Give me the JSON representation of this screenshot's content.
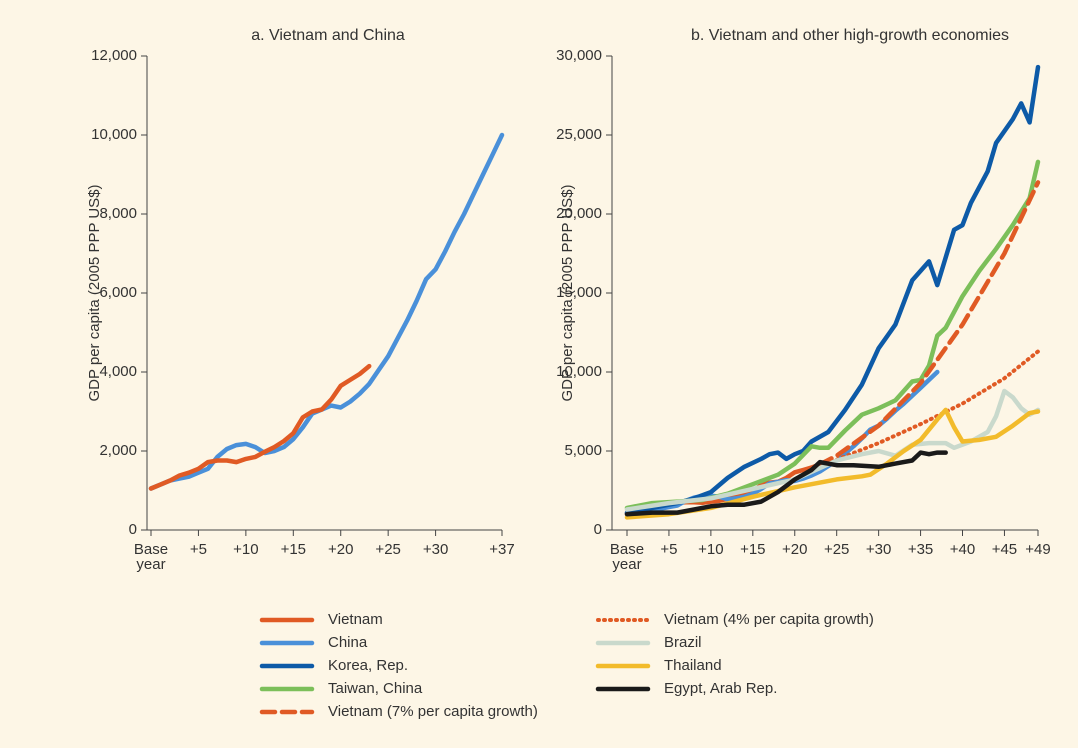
{
  "chart_data": [
    {
      "type": "line",
      "title": "a. Vietnam and China",
      "y_label": "GDP per capita (2005 PPP US$)",
      "xlim": [
        0,
        37
      ],
      "ylim": [
        0,
        12000
      ],
      "xticks": [
        {
          "value": 0,
          "label": "Base year"
        },
        5,
        10,
        15,
        20,
        25,
        30,
        37
      ],
      "yticks": [
        0,
        {
          "value": 2000,
          "label": "2,000"
        },
        {
          "value": 4000,
          "label": "4,000"
        },
        {
          "value": 6000,
          "label": "6,000"
        },
        {
          "value": 8000,
          "label": "8,000"
        },
        {
          "value": 10000,
          "label": "10,000"
        },
        {
          "value": 12000,
          "label": "12,000"
        }
      ],
      "xtick_prefix": "+",
      "series": [
        {
          "name": "China",
          "color": "#4a90d9",
          "style": "solid",
          "x": [
            0,
            1,
            2,
            3,
            4,
            5,
            6,
            7,
            8,
            9,
            10,
            11,
            12,
            13,
            14,
            15,
            16,
            17,
            18,
            19,
            20,
            21,
            22,
            23,
            24,
            25,
            26,
            27,
            28,
            29,
            30,
            31,
            32,
            33,
            34,
            35,
            36,
            37
          ],
          "values": [
            1050,
            1150,
            1250,
            1300,
            1350,
            1450,
            1550,
            1850,
            2050,
            2150,
            2180,
            2100,
            1950,
            2000,
            2100,
            2300,
            2600,
            2950,
            3050,
            3150,
            3100,
            3250,
            3450,
            3700,
            4050,
            4400,
            4850,
            5300,
            5800,
            6350,
            6600,
            7050,
            7550,
            8000,
            8500,
            9000,
            9500,
            10000
          ]
        },
        {
          "name": "Vietnam",
          "color": "#e05a24",
          "style": "solid",
          "x": [
            0,
            1,
            2,
            3,
            4,
            5,
            6,
            7,
            8,
            9,
            10,
            11,
            12,
            13,
            14,
            15,
            16,
            17,
            18,
            19,
            20,
            21,
            22,
            23
          ],
          "values": [
            1050,
            1150,
            1250,
            1380,
            1450,
            1550,
            1720,
            1760,
            1760,
            1720,
            1800,
            1850,
            1980,
            2100,
            2250,
            2450,
            2850,
            3000,
            3050,
            3300,
            3650,
            3800,
            3950,
            4150
          ]
        }
      ]
    },
    {
      "type": "line",
      "title": "b. Vietnam and other high-growth economies",
      "y_label": "GDP per capita (2005 PPP US$)",
      "xlim": [
        0,
        49
      ],
      "ylim": [
        0,
        30000
      ],
      "xticks": [
        {
          "value": 0,
          "label": "Base year"
        },
        5,
        10,
        15,
        20,
        25,
        30,
        35,
        40,
        45,
        49
      ],
      "yticks": [
        0,
        {
          "value": 5000,
          "label": "5,000"
        },
        {
          "value": 10000,
          "label": "10,000"
        },
        {
          "value": 15000,
          "label": "15,000"
        },
        {
          "value": 20000,
          "label": "20,000"
        },
        {
          "value": 25000,
          "label": "25,000"
        },
        {
          "value": 30000,
          "label": "30,000"
        }
      ],
      "xtick_prefix": "+",
      "series": [
        {
          "name": "Vietnam",
          "color": "#e05a24",
          "style": "solid",
          "x": [
            0,
            1,
            2,
            3,
            4,
            5,
            6,
            7,
            8,
            9,
            10,
            11,
            12,
            13,
            14,
            15,
            16,
            17,
            18,
            19,
            20,
            21,
            22,
            23
          ],
          "values": [
            1050,
            1150,
            1250,
            1380,
            1450,
            1550,
            1720,
            1760,
            1760,
            1720,
            1800,
            1850,
            1980,
            2100,
            2250,
            2450,
            2850,
            3000,
            3050,
            3300,
            3650,
            3800,
            3950,
            4150
          ]
        },
        {
          "name": "China",
          "color": "#4a90d9",
          "style": "solid",
          "x": [
            0,
            1,
            2,
            3,
            4,
            5,
            6,
            7,
            8,
            9,
            10,
            11,
            12,
            13,
            14,
            15,
            16,
            17,
            18,
            19,
            20,
            21,
            22,
            23,
            24,
            25,
            26,
            27,
            28,
            29,
            30,
            31,
            32,
            33,
            34,
            35,
            36,
            37
          ],
          "values": [
            1050,
            1150,
            1250,
            1300,
            1350,
            1450,
            1550,
            1850,
            2050,
            2150,
            2180,
            2100,
            1950,
            2000,
            2100,
            2300,
            2600,
            2950,
            3050,
            3150,
            3100,
            3250,
            3450,
            3700,
            4050,
            4400,
            4850,
            5300,
            5800,
            6350,
            6600,
            7050,
            7550,
            8000,
            8500,
            9000,
            9500,
            10000
          ]
        },
        {
          "name": "Korea, Rep.",
          "color": "#0d5aa7",
          "style": "solid",
          "x": [
            0,
            2,
            4,
            6,
            8,
            10,
            12,
            14,
            16,
            17,
            18,
            19,
            20,
            21,
            22,
            24,
            26,
            28,
            30,
            32,
            34,
            36,
            37,
            39,
            40,
            41,
            43,
            44,
            46,
            47,
            48,
            49
          ],
          "values": [
            1100,
            1300,
            1500,
            1700,
            2000,
            2400,
            3300,
            4000,
            4500,
            4800,
            4900,
            4500,
            4800,
            5000,
            5600,
            6200,
            7600,
            9200,
            11500,
            13000,
            15800,
            17000,
            15500,
            19000,
            19300,
            20700,
            22700,
            24500,
            26000,
            27000,
            25800,
            29300
          ]
        },
        {
          "name": "Taiwan, China",
          "color": "#7cbf5a",
          "style": "solid",
          "x": [
            0,
            3,
            6,
            9,
            12,
            15,
            18,
            20,
            22,
            23,
            24,
            26,
            28,
            30,
            32,
            34,
            35,
            36,
            37,
            38,
            40,
            42,
            44,
            46,
            48,
            49
          ],
          "values": [
            1400,
            1700,
            1800,
            1900,
            2300,
            2900,
            3500,
            4200,
            5300,
            5200,
            5200,
            6300,
            7300,
            7700,
            8200,
            9400,
            9500,
            10400,
            12300,
            12800,
            14800,
            16400,
            17800,
            19300,
            21000,
            23300
          ]
        },
        {
          "name": "Vietnam (7% per capita growth)",
          "color": "#e05a24",
          "style": "dashed",
          "x": [
            23,
            25,
            30,
            35,
            40,
            45,
            49
          ],
          "values": [
            4150,
            4700,
            6600,
            9300,
            13000,
            17500,
            22000
          ]
        },
        {
          "name": "Vietnam (4% per capita growth)",
          "color": "#e05a24",
          "style": "dotted",
          "x": [
            23,
            25,
            30,
            35,
            40,
            45,
            49
          ],
          "values": [
            4150,
            4450,
            5500,
            6700,
            8000,
            9600,
            11300
          ]
        },
        {
          "name": "Brazil",
          "color": "#c9d9cc",
          "style": "solid",
          "x": [
            0,
            5,
            10,
            15,
            20,
            25,
            28,
            30,
            32,
            34,
            36,
            38,
            39,
            41,
            43,
            44,
            45,
            46,
            47,
            48,
            49
          ],
          "values": [
            1300,
            1700,
            2000,
            2600,
            3200,
            4400,
            4800,
            5000,
            4700,
            5400,
            5500,
            5500,
            5200,
            5600,
            6200,
            7200,
            8800,
            8400,
            7700,
            7300,
            7600
          ]
        },
        {
          "name": "Thailand",
          "color": "#f2bb2b",
          "style": "solid",
          "x": [
            0,
            5,
            10,
            15,
            20,
            25,
            28,
            29,
            31,
            33,
            35,
            37,
            38,
            39,
            40,
            42,
            44,
            46,
            48,
            49
          ],
          "values": [
            800,
            1000,
            1400,
            2100,
            2700,
            3200,
            3400,
            3500,
            4200,
            5000,
            5700,
            7000,
            7600,
            6500,
            5600,
            5700,
            5900,
            6600,
            7400,
            7500
          ]
        },
        {
          "name": "Egypt, Arab Rep.",
          "color": "#1a1a1a",
          "style": "solid",
          "x": [
            0,
            3,
            6,
            8,
            10,
            12,
            14,
            16,
            18,
            20,
            22,
            23,
            25,
            27,
            30,
            32,
            34,
            35,
            36,
            37,
            38
          ],
          "values": [
            1000,
            1100,
            1100,
            1300,
            1500,
            1600,
            1600,
            1800,
            2400,
            3200,
            3800,
            4300,
            4100,
            4100,
            4000,
            4200,
            4400,
            4900,
            4800,
            4900,
            4900
          ]
        }
      ]
    }
  ]
}
